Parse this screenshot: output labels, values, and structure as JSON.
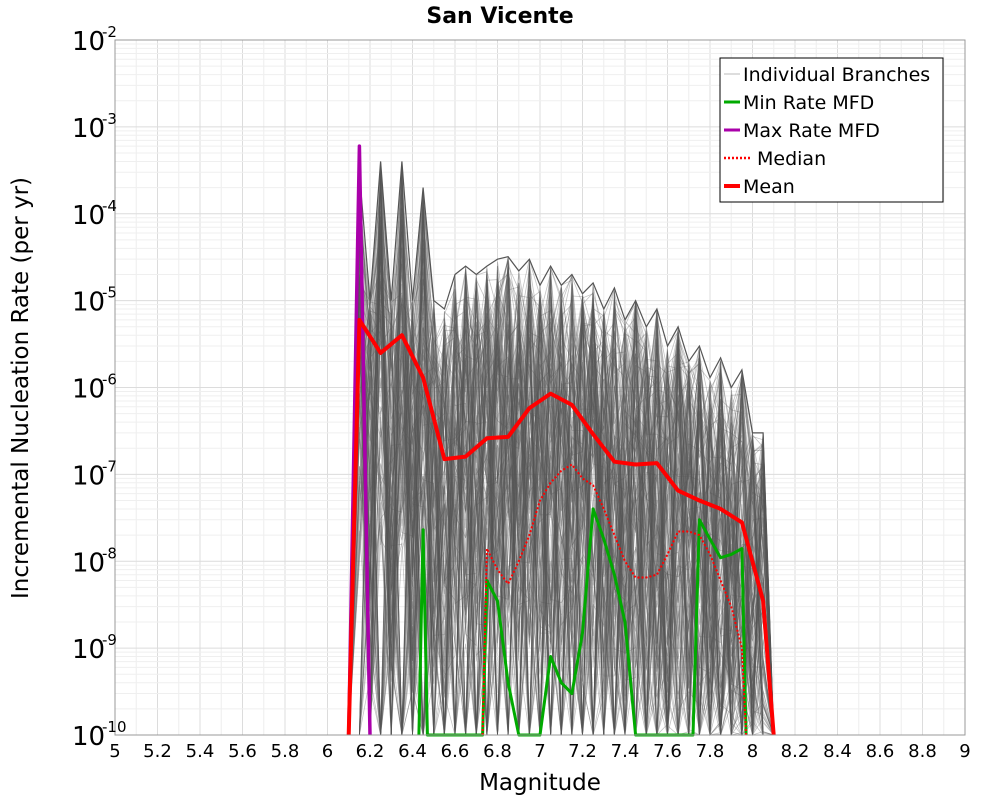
{
  "chart_data": {
    "type": "line",
    "title": "San Vicente",
    "xlabel": "Magnitude",
    "ylabel": "Incremental Nucleation Rate (per yr)",
    "xlim": [
      5,
      9
    ],
    "ylim": [
      1e-10,
      0.01
    ],
    "yscale": "log",
    "grid": true,
    "legend_position": "top-right",
    "x_ticks": [
      "5",
      "5.2",
      "5.4",
      "5.6",
      "5.8",
      "6",
      "6.2",
      "6.4",
      "6.6",
      "6.8",
      "7",
      "7.2",
      "7.4",
      "7.6",
      "7.8",
      "8",
      "8.2",
      "8.4",
      "8.6",
      "8.8",
      "9"
    ],
    "y_ticks": [
      {
        "base": "10",
        "exp": "-10"
      },
      {
        "base": "10",
        "exp": "-9"
      },
      {
        "base": "10",
        "exp": "-8"
      },
      {
        "base": "10",
        "exp": "-7"
      },
      {
        "base": "10",
        "exp": "-6"
      },
      {
        "base": "10",
        "exp": "-5"
      },
      {
        "base": "10",
        "exp": "-4"
      },
      {
        "base": "10",
        "exp": "-3"
      },
      {
        "base": "10",
        "exp": "-2"
      }
    ],
    "series": [
      {
        "name": "Individual Branches",
        "color": "#555555",
        "style": "thin",
        "envelope": {
          "x": [
            6.1,
            6.15,
            6.2,
            6.25,
            6.3,
            6.35,
            6.4,
            6.45,
            6.5,
            6.55,
            6.6,
            6.65,
            6.7,
            6.75,
            6.8,
            6.85,
            6.9,
            6.95,
            7.0,
            7.05,
            7.1,
            7.15,
            7.2,
            7.25,
            7.3,
            7.35,
            7.4,
            7.45,
            7.5,
            7.55,
            7.6,
            7.65,
            7.7,
            7.75,
            7.8,
            7.85,
            7.9,
            7.95,
            8.0,
            8.05,
            8.1
          ],
          "upper": [
            1e-10,
            0.0003,
            1e-05,
            0.0004,
            1e-05,
            0.0004,
            1e-05,
            0.0002,
            1e-05,
            8e-06,
            2e-05,
            2.5e-05,
            2e-05,
            2.5e-05,
            3e-05,
            3.2e-05,
            2.2e-05,
            3e-05,
            1.5e-05,
            2.5e-05,
            1.5e-05,
            2e-05,
            1.2e-05,
            1.6e-05,
            8e-06,
            1.4e-05,
            6e-06,
            1e-05,
            5e-06,
            8e-06,
            3e-06,
            5e-06,
            2e-06,
            3e-06,
            1.3e-06,
            2.2e-06,
            1e-06,
            1.6e-06,
            3e-07,
            3e-07,
            1e-10
          ]
        }
      },
      {
        "name": "Min Rate MFD",
        "color": "#00aa00",
        "x": [
          6.43,
          6.45,
          6.47,
          6.73,
          6.75,
          6.8,
          6.85,
          6.9,
          6.95,
          7.0,
          7.05,
          7.1,
          7.15,
          7.2,
          7.25,
          7.3,
          7.35,
          7.4,
          7.45,
          7.47,
          7.72,
          7.75,
          7.8,
          7.85,
          7.9,
          7.95,
          7.97
        ],
        "values": [
          1e-10,
          2.3e-08,
          1e-10,
          1e-10,
          6e-09,
          3.5e-09,
          4e-10,
          1e-10,
          1e-10,
          1e-10,
          8e-10,
          4e-10,
          3e-10,
          1.5e-09,
          4e-08,
          1.8e-08,
          7e-09,
          2e-09,
          1e-10,
          1e-10,
          1e-10,
          3e-08,
          1.8e-08,
          1.1e-08,
          1.2e-08,
          1.4e-08,
          1e-10
        ]
      },
      {
        "name": "Max Rate MFD",
        "color": "#aa00aa",
        "x": [
          6.1,
          6.15,
          6.2
        ],
        "values": [
          1e-10,
          0.0006,
          1e-10
        ]
      },
      {
        "name": "Median",
        "color": "#ff0000",
        "dashed": true,
        "x": [
          6.73,
          6.75,
          6.8,
          6.85,
          6.9,
          6.95,
          7.0,
          7.05,
          7.1,
          7.15,
          7.2,
          7.25,
          7.3,
          7.35,
          7.4,
          7.45,
          7.5,
          7.55,
          7.6,
          7.65,
          7.7,
          7.75,
          7.8,
          7.85,
          7.9,
          7.95,
          7.97
        ],
        "values": [
          1e-10,
          1.4e-08,
          8e-09,
          5.5e-09,
          1e-08,
          2e-08,
          5e-08,
          8e-08,
          1.1e-07,
          1.3e-07,
          9e-08,
          7.5e-08,
          4e-08,
          2e-08,
          1e-08,
          6.5e-09,
          6.5e-09,
          7e-09,
          1.2e-08,
          2.2e-08,
          2.2e-08,
          2e-08,
          1.2e-08,
          6e-09,
          3e-09,
          1e-09,
          1e-10
        ]
      },
      {
        "name": "Mean",
        "color": "#ff0000",
        "x": [
          6.1,
          6.15,
          6.25,
          6.35,
          6.45,
          6.55,
          6.65,
          6.75,
          6.85,
          6.95,
          7.05,
          7.15,
          7.25,
          7.35,
          7.45,
          7.55,
          7.65,
          7.75,
          7.85,
          7.95,
          8.05,
          8.1
        ],
        "values": [
          1e-10,
          6e-06,
          2.5e-06,
          4e-06,
          1.3e-06,
          1.5e-07,
          1.6e-07,
          2.6e-07,
          2.7e-07,
          5.8e-07,
          8.5e-07,
          6.3e-07,
          2.9e-07,
          1.4e-07,
          1.3e-07,
          1.35e-07,
          6.5e-08,
          5e-08,
          4e-08,
          2.8e-08,
          3.5e-09,
          1e-10
        ]
      }
    ]
  }
}
